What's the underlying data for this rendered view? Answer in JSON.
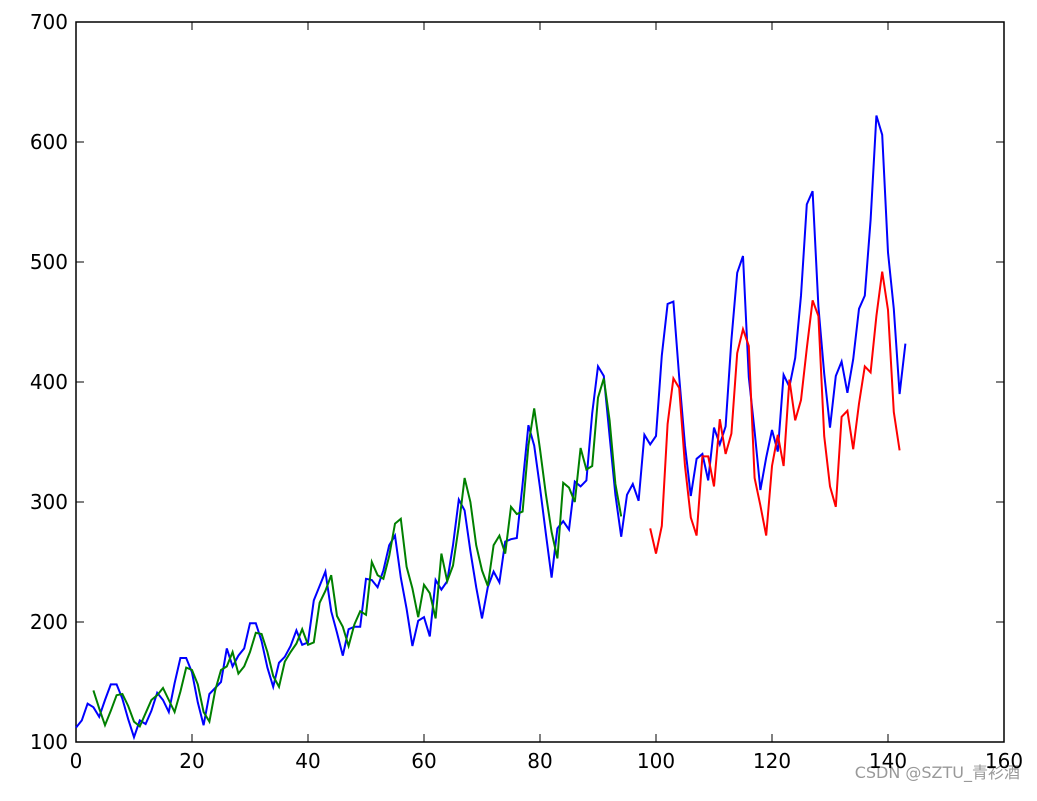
{
  "chart_data": {
    "type": "line",
    "xlim": [
      0,
      160
    ],
    "xticks": [
      0,
      20,
      40,
      60,
      80,
      100,
      120,
      140,
      160
    ],
    "ylim": [
      100,
      700
    ],
    "yticks": [
      100,
      200,
      300,
      400,
      500,
      600,
      700
    ],
    "grid": false,
    "watermark": "CSDN @SZTU_青衫酒",
    "series": [
      {
        "color": "#0000ff",
        "x": [
          0,
          1,
          2,
          3,
          4,
          5,
          6,
          7,
          8,
          9,
          10,
          11,
          12,
          13,
          14,
          15,
          16,
          17,
          18,
          19,
          20,
          21,
          22,
          23,
          24,
          25,
          26,
          27,
          28,
          29,
          30,
          31,
          32,
          33,
          34,
          35,
          36,
          37,
          38,
          39,
          40,
          41,
          42,
          43,
          44,
          45,
          46,
          47,
          48,
          49,
          50,
          51,
          52,
          53,
          54,
          55,
          56,
          57,
          58,
          59,
          60,
          61,
          62,
          63,
          64,
          65,
          66,
          67,
          68,
          69,
          70,
          71,
          72,
          73,
          74,
          75,
          76,
          77,
          78,
          79,
          80,
          81,
          82,
          83,
          84,
          85,
          86,
          87,
          88,
          89,
          90,
          91,
          92,
          93,
          94,
          95,
          96,
          97,
          98,
          99,
          100,
          101,
          102,
          103,
          104,
          105,
          106,
          107,
          108,
          109,
          110,
          111,
          112,
          113,
          114,
          115,
          116,
          117,
          118,
          119,
          120,
          121,
          122,
          123,
          124,
          125,
          126,
          127,
          128,
          129,
          130,
          131,
          132,
          133,
          134,
          135,
          136,
          137,
          138,
          139,
          140,
          141,
          142,
          143
        ],
        "values": [
          112,
          118,
          132,
          129,
          121,
          135,
          148,
          148,
          136,
          119,
          104,
          118,
          115,
          126,
          141,
          135,
          125,
          149,
          170,
          170,
          158,
          133,
          114,
          140,
          145,
          150,
          178,
          163,
          172,
          178,
          199,
          199,
          184,
          162,
          146,
          166,
          171,
          180,
          193,
          181,
          183,
          218,
          230,
          242,
          209,
          191,
          172,
          194,
          196,
          196,
          236,
          235,
          229,
          243,
          264,
          272,
          237,
          211,
          180,
          201,
          204,
          188,
          235,
          227,
          234,
          264,
          302,
          293,
          259,
          229,
          203,
          229,
          242,
          233,
          267,
          269,
          270,
          315,
          364,
          347,
          312,
          274,
          237,
          278,
          284,
          277,
          317,
          313,
          318,
          374,
          413,
          405,
          355,
          306,
          271,
          306,
          315,
          301,
          356,
          348,
          355,
          422,
          465,
          467,
          404,
          347,
          305,
          336,
          340,
          318,
          362,
          348,
          363,
          435,
          491,
          505,
          404,
          359,
          310,
          337,
          360,
          342,
          406,
          396,
          420,
          472,
          548,
          559,
          463,
          407,
          362,
          405,
          417,
          391,
          419,
          461,
          472,
          535,
          622,
          606,
          508,
          461,
          390,
          432
        ]
      },
      {
        "color": "#008000",
        "x": [
          3,
          4,
          5,
          6,
          7,
          8,
          9,
          10,
          11,
          12,
          13,
          14,
          15,
          16,
          17,
          18,
          19,
          20,
          21,
          22,
          23,
          24,
          25,
          26,
          27,
          28,
          29,
          30,
          31,
          32,
          33,
          34,
          35,
          36,
          37,
          38,
          39,
          40,
          41,
          42,
          43,
          44,
          45,
          46,
          47,
          48,
          49,
          50,
          51,
          52,
          53,
          54,
          55,
          56,
          57,
          58,
          59,
          60,
          61,
          62,
          63,
          64,
          65,
          66,
          67,
          68,
          69,
          70,
          71,
          72,
          73,
          74,
          75,
          76,
          77,
          78,
          79,
          80,
          81,
          82,
          83,
          84,
          85,
          86,
          87,
          88,
          89,
          90,
          91,
          92,
          93,
          94
        ],
        "values": [
          143,
          128,
          114,
          126,
          139,
          140,
          130,
          117,
          113,
          124,
          135,
          139,
          145,
          135,
          125,
          142,
          162,
          160,
          148,
          125,
          117,
          143,
          160,
          163,
          175,
          157,
          163,
          175,
          191,
          190,
          175,
          155,
          146,
          167,
          175,
          182,
          194,
          181,
          183,
          216,
          226,
          239,
          205,
          196,
          180,
          198,
          209,
          206,
          250,
          239,
          236,
          255,
          282,
          286,
          246,
          228,
          204,
          231,
          224,
          203,
          257,
          234,
          247,
          280,
          320,
          300,
          264,
          243,
          230,
          264,
          272,
          257,
          296,
          290,
          292,
          347,
          378,
          344,
          307,
          275,
          253,
          316,
          312,
          300,
          345,
          327,
          330,
          387,
          403,
          368,
          315,
          288
        ]
      },
      {
        "color": "#ff0000",
        "x": [
          99,
          100,
          101,
          102,
          103,
          104,
          105,
          106,
          107,
          108,
          109,
          110,
          111,
          112,
          113,
          114,
          115,
          116,
          117,
          118,
          119,
          120,
          121,
          122,
          123,
          124,
          125,
          126,
          127,
          128,
          129,
          130,
          131,
          132,
          133,
          134,
          135,
          136,
          137,
          138,
          139,
          140,
          141,
          142
        ],
        "values": [
          278,
          257,
          280,
          365,
          403,
          395,
          330,
          287,
          272,
          338,
          338,
          313,
          369,
          340,
          357,
          424,
          444,
          430,
          320,
          297,
          272,
          330,
          356,
          330,
          402,
          368,
          385,
          428,
          468,
          455,
          355,
          313,
          296,
          371,
          376,
          344,
          382,
          413,
          408,
          455,
          492,
          460,
          375,
          343
        ]
      }
    ]
  }
}
